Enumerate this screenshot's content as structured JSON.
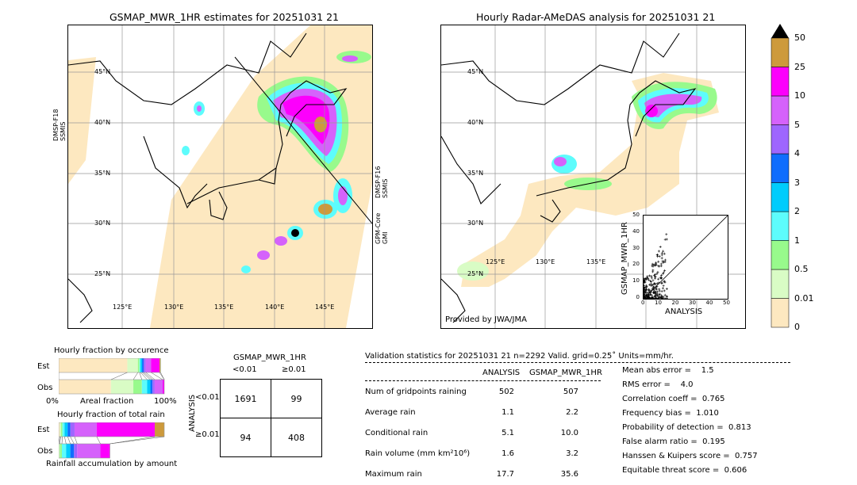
{
  "left_map": {
    "title": "GSMAP_MWR_1HR estimates for 20251031 21",
    "lat_labels": [
      "45°N",
      "40°N",
      "35°N",
      "30°N",
      "25°N"
    ],
    "lon_labels": [
      "125°E",
      "130°E",
      "135°E",
      "140°E",
      "145°E"
    ],
    "sensor_left": [
      "DMSP-F18",
      "SSMIS"
    ],
    "sensor_right_1": [
      "DMSP-F16",
      "SSMIS"
    ],
    "sensor_right_2": [
      "GPM-Core",
      "GMI"
    ]
  },
  "right_map": {
    "title": "Hourly Radar-AMeDAS analysis for 20251031 21",
    "lat_labels": [
      "45°N",
      "40°N",
      "35°N",
      "30°N",
      "25°N"
    ],
    "lon_labels": [
      "125°E",
      "130°E",
      "135°E"
    ],
    "credit": "Provided by JWA/JMA",
    "inset": {
      "ylabel": "GSMAP_MWR_1HR",
      "xlabel": "ANALYSIS",
      "ticks": [
        "0",
        "10",
        "20",
        "30",
        "40",
        "50"
      ]
    }
  },
  "colorbar": {
    "labels": [
      "0",
      "0.01",
      "0.5",
      "1",
      "2",
      "3",
      "4",
      "5",
      "10",
      "25",
      "50"
    ],
    "colors": [
      "#fde8c0",
      "#d9fcc5",
      "#98fa8c",
      "#5dfcfc",
      "#00ccfc",
      "#0f6dfd",
      "#9e66fe",
      "#d562fb",
      "#fc00fc",
      "#cd9a3c"
    ]
  },
  "occurrence": {
    "title": "Hourly fraction by occurence",
    "est_label": "Est",
    "obs_label": "Obs",
    "x_left": "0%",
    "x_mid": "Areal fraction",
    "x_right": "100%",
    "est_fractions": [
      0.65,
      0.1,
      0.015,
      0.01,
      0.015,
      0.015,
      0.02,
      0.05,
      0.08,
      0.01
    ],
    "obs_fractions": [
      0.49,
      0.21,
      0.08,
      0.05,
      0.03,
      0.02,
      0.02,
      0.075,
      0.015,
      0.0
    ]
  },
  "total_rain": {
    "title": "Hourly fraction of total rain",
    "est_label": "Est",
    "obs_label": "Obs",
    "footer": "Rainfall accumulation by amount",
    "est_fractions": [
      0.01,
      0.01,
      0.015,
      0.02,
      0.03,
      0.025,
      0.04,
      0.21,
      0.55,
      0.09
    ],
    "obs_fractions": [
      0.0,
      0.01,
      0.02,
      0.04,
      0.04,
      0.035,
      0.03,
      0.22,
      0.09,
      0.0
    ]
  },
  "contingency": {
    "title": "GSMAP_MWR_1HR",
    "col_headers": [
      "<0.01",
      "≥0.01"
    ],
    "row_axis": "ANALYSIS",
    "row_headers": [
      "<0.01",
      "≥0.01"
    ],
    "cells": [
      [
        "1691",
        "99"
      ],
      [
        "94",
        "408"
      ]
    ]
  },
  "stats": {
    "header": "Validation statistics for 20251031 21  n=2292 Valid. grid=0.25˚ Units=mm/hr.",
    "col_analysis": "ANALYSIS",
    "col_gsmap": "GSMAP_MWR_1HR",
    "rows": [
      {
        "label": "Num of gridpoints raining",
        "analysis": "502",
        "gsmap": "507"
      },
      {
        "label": "Average rain",
        "analysis": "1.1",
        "gsmap": "2.2"
      },
      {
        "label": "Conditional rain",
        "analysis": "5.1",
        "gsmap": "10.0"
      },
      {
        "label": "Rain volume (mm km²10⁶)",
        "analysis": "1.6",
        "gsmap": "3.2"
      },
      {
        "label": "Maximum rain",
        "analysis": "17.7",
        "gsmap": "35.6"
      }
    ],
    "scores": [
      "Mean abs error =    1.5",
      "RMS error =    4.0",
      "Correlation coeff =  0.765",
      "Frequency bias =  1.010",
      "Probability of detection =  0.813",
      "False alarm ratio =  0.195",
      "Hanssen & Kuipers score =  0.757",
      "Equitable threat score =  0.606"
    ]
  }
}
